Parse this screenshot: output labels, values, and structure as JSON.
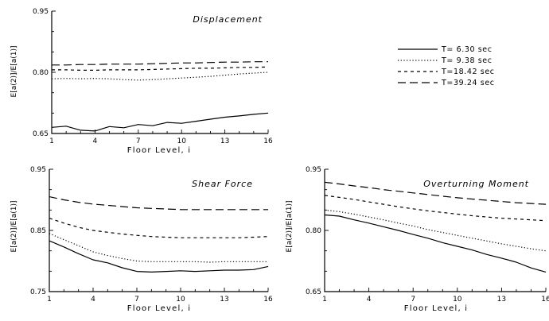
{
  "chart_data": [
    {
      "type": "line",
      "title": "Displacement",
      "xlabel": "Floor Level, i",
      "ylabel": "E[a(2)]/E[a(1)]",
      "xlim": [
        1,
        16
      ],
      "ylim": [
        0.65,
        0.95
      ],
      "xticks": [
        "1",
        "4",
        "7",
        "10",
        "13",
        "16"
      ],
      "yticks": [
        "0.65",
        "0.80",
        "0.95"
      ],
      "x": [
        1,
        2,
        3,
        4,
        5,
        6,
        7,
        8,
        9,
        10,
        11,
        12,
        13,
        14,
        15,
        16
      ],
      "series": [
        {
          "name": "T= 6.30 sec",
          "dash": "solid",
          "values": [
            0.665,
            0.668,
            0.658,
            0.656,
            0.667,
            0.664,
            0.672,
            0.669,
            0.677,
            0.675,
            0.68,
            0.685,
            0.69,
            0.693,
            0.697,
            0.7
          ]
        },
        {
          "name": "T= 9.38 sec",
          "dash": "dot",
          "values": [
            0.784,
            0.785,
            0.784,
            0.785,
            0.784,
            0.782,
            0.781,
            0.782,
            0.784,
            0.786,
            0.788,
            0.79,
            0.793,
            0.796,
            0.798,
            0.8
          ]
        },
        {
          "name": "T=18.42 sec",
          "dash": "short",
          "values": [
            0.806,
            0.806,
            0.805,
            0.805,
            0.806,
            0.806,
            0.806,
            0.807,
            0.808,
            0.809,
            0.81,
            0.81,
            0.811,
            0.812,
            0.812,
            0.813
          ]
        },
        {
          "name": "T=39.24 sec",
          "dash": "long",
          "values": [
            0.818,
            0.818,
            0.819,
            0.819,
            0.82,
            0.82,
            0.82,
            0.821,
            0.822,
            0.823,
            0.823,
            0.824,
            0.825,
            0.825,
            0.826,
            0.826
          ]
        }
      ],
      "legend": "right"
    },
    {
      "type": "line",
      "title": "Shear Force",
      "xlabel": "Floor Level, i",
      "ylabel": "E[a(2)]/E[a(1)]",
      "xlim": [
        1,
        16
      ],
      "ylim": [
        0.75,
        0.95
      ],
      "xticks": [
        "1",
        "4",
        "7",
        "10",
        "13",
        "16"
      ],
      "yticks": [
        "0.75",
        "0.85",
        "0.95"
      ],
      "x": [
        1,
        2,
        3,
        4,
        5,
        6,
        7,
        8,
        9,
        10,
        11,
        12,
        13,
        14,
        15,
        16
      ],
      "series": [
        {
          "name": "T= 6.30 sec",
          "dash": "solid",
          "values": [
            0.833,
            0.823,
            0.812,
            0.802,
            0.797,
            0.789,
            0.783,
            0.782,
            0.783,
            0.784,
            0.783,
            0.784,
            0.785,
            0.785,
            0.786,
            0.791
          ]
        },
        {
          "name": "T= 9.38 sec",
          "dash": "dot",
          "values": [
            0.845,
            0.835,
            0.825,
            0.815,
            0.809,
            0.804,
            0.8,
            0.799,
            0.799,
            0.799,
            0.799,
            0.798,
            0.799,
            0.799,
            0.799,
            0.799
          ]
        },
        {
          "name": "T=18.42 sec",
          "dash": "short",
          "values": [
            0.87,
            0.862,
            0.855,
            0.85,
            0.847,
            0.844,
            0.842,
            0.84,
            0.839,
            0.838,
            0.838,
            0.838,
            0.838,
            0.838,
            0.839,
            0.84
          ]
        },
        {
          "name": "T=39.24 sec",
          "dash": "long",
          "values": [
            0.905,
            0.9,
            0.896,
            0.893,
            0.891,
            0.889,
            0.887,
            0.886,
            0.885,
            0.884,
            0.884,
            0.884,
            0.884,
            0.884,
            0.884,
            0.884
          ]
        }
      ]
    },
    {
      "type": "line",
      "title": "Overturning Moment",
      "xlabel": "Floor Level, i",
      "ylabel": "E[a(2)]/E[a(1)]",
      "xlim": [
        1,
        16
      ],
      "ylim": [
        0.65,
        0.95
      ],
      "xticks": [
        "1",
        "4",
        "7",
        "10",
        "13",
        "16"
      ],
      "yticks": [
        "0.65",
        "0.80",
        "0.95"
      ],
      "x": [
        1,
        2,
        3,
        4,
        5,
        6,
        7,
        8,
        9,
        10,
        11,
        12,
        13,
        14,
        15,
        16
      ],
      "series": [
        {
          "name": "T= 6.30 sec",
          "dash": "solid",
          "values": [
            0.838,
            0.835,
            0.826,
            0.818,
            0.809,
            0.8,
            0.79,
            0.781,
            0.77,
            0.761,
            0.752,
            0.741,
            0.732,
            0.722,
            0.708,
            0.698
          ]
        },
        {
          "name": "T= 9.38 sec",
          "dash": "dot",
          "values": [
            0.85,
            0.846,
            0.84,
            0.833,
            0.826,
            0.818,
            0.811,
            0.802,
            0.795,
            0.788,
            0.781,
            0.774,
            0.767,
            0.761,
            0.755,
            0.75
          ]
        },
        {
          "name": "T=18.42 sec",
          "dash": "short",
          "values": [
            0.886,
            0.881,
            0.876,
            0.87,
            0.864,
            0.858,
            0.853,
            0.848,
            0.844,
            0.84,
            0.836,
            0.833,
            0.83,
            0.828,
            0.826,
            0.824
          ]
        },
        {
          "name": "T=39.24 sec",
          "dash": "long",
          "values": [
            0.918,
            0.914,
            0.909,
            0.905,
            0.9,
            0.896,
            0.892,
            0.888,
            0.884,
            0.88,
            0.877,
            0.874,
            0.871,
            0.868,
            0.866,
            0.864
          ]
        }
      ]
    }
  ]
}
